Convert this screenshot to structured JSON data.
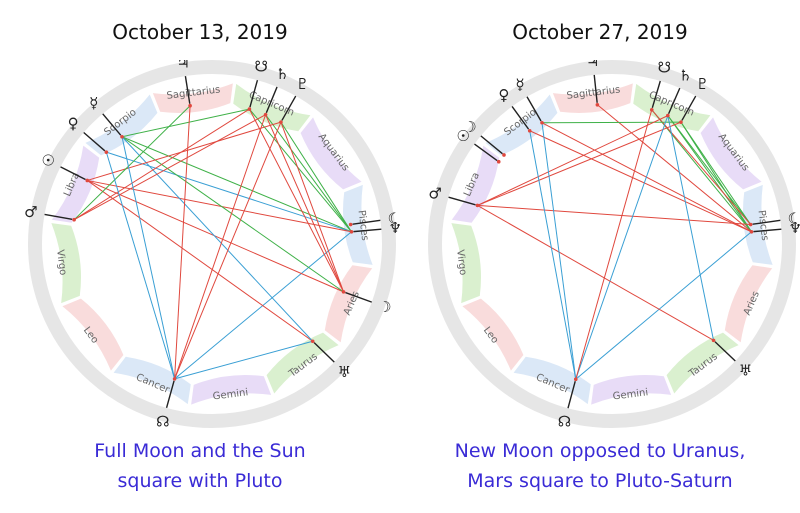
{
  "charts": [
    {
      "title": "October 13, 2019",
      "caption": [
        "Full Moon and the Sun",
        "square with Pluto"
      ],
      "bodies": [
        {
          "id": "pluto",
          "glyph": "♇",
          "lon": 291.5
        },
        {
          "id": "saturn",
          "glyph": "♄",
          "lon": 284.5
        },
        {
          "id": "node-s",
          "glyph": "☋",
          "lon": 277.5
        },
        {
          "id": "jupiter",
          "glyph": "♃",
          "lon": 253.0
        },
        {
          "id": "mercury",
          "glyph": "☿",
          "lon": 222.0
        },
        {
          "id": "venus",
          "glyph": "♀",
          "lon": 213.0
        },
        {
          "id": "sun",
          "glyph": "☉",
          "lon": 199.0
        },
        {
          "id": "mars",
          "glyph": "♂",
          "lon": 182.0
        },
        {
          "id": "node-n",
          "glyph": "☊",
          "lon": 97.5
        },
        {
          "id": "uranus",
          "glyph": "♅",
          "lon": 36.0
        },
        {
          "id": "moon",
          "glyph": "☽",
          "lon": 12.0
        },
        {
          "id": "neptune",
          "glyph": "♆",
          "lon": 347.0
        },
        {
          "id": "moon2",
          "glyph": "☾",
          "lon": 344.0
        }
      ],
      "aspects": [
        {
          "a": "neptune",
          "b": "pluto",
          "color": "green"
        },
        {
          "a": "neptune",
          "b": "saturn",
          "color": "green"
        },
        {
          "a": "neptune",
          "b": "node-s",
          "color": "green"
        },
        {
          "a": "neptune",
          "b": "mercury",
          "color": "green"
        },
        {
          "a": "neptune",
          "b": "venus",
          "color": "blue"
        },
        {
          "a": "neptune",
          "b": "sun",
          "color": "red"
        },
        {
          "a": "neptune",
          "b": "node-n",
          "color": "blue"
        },
        {
          "a": "moon",
          "b": "pluto",
          "color": "red"
        },
        {
          "a": "moon",
          "b": "saturn",
          "color": "red"
        },
        {
          "a": "moon",
          "b": "sun",
          "color": "red"
        },
        {
          "a": "moon",
          "b": "mercury",
          "color": "green"
        },
        {
          "a": "moon",
          "b": "node-s",
          "color": "red"
        },
        {
          "a": "uranus",
          "b": "sun",
          "color": "red"
        },
        {
          "a": "uranus",
          "b": "mercury",
          "color": "blue"
        },
        {
          "a": "uranus",
          "b": "node-n",
          "color": "blue"
        },
        {
          "a": "saturn",
          "b": "node-n",
          "color": "red"
        },
        {
          "a": "pluto",
          "b": "node-n",
          "color": "red"
        },
        {
          "a": "pluto",
          "b": "sun",
          "color": "red"
        },
        {
          "a": "saturn",
          "b": "mars",
          "color": "red"
        },
        {
          "a": "jupiter",
          "b": "mars",
          "color": "green"
        },
        {
          "a": "node-s",
          "b": "mercury",
          "color": "green"
        },
        {
          "a": "node-s",
          "b": "mars",
          "color": "red"
        },
        {
          "a": "mercury",
          "b": "node-n",
          "color": "blue"
        },
        {
          "a": "jupiter",
          "b": "node-n",
          "color": "red"
        },
        {
          "a": "venus",
          "b": "node-n",
          "color": "blue"
        }
      ]
    },
    {
      "title": "October 27, 2019",
      "caption": [
        "New Moon opposed to Uranus,",
        "Mars square to Pluto-Saturn"
      ],
      "bodies": [
        {
          "id": "pluto",
          "glyph": "♇",
          "lon": 291.5
        },
        {
          "id": "saturn",
          "glyph": "♄",
          "lon": 285.5
        },
        {
          "id": "node-s",
          "glyph": "☋",
          "lon": 278.5
        },
        {
          "id": "jupiter",
          "glyph": "♃",
          "lon": 256.0
        },
        {
          "id": "mercury",
          "glyph": "☿",
          "lon": 232.0
        },
        {
          "id": "venus",
          "glyph": "♀",
          "lon": 226.0
        },
        {
          "id": "moon",
          "glyph": "☽",
          "lon": 211.5
        },
        {
          "id": "sun",
          "glyph": "☉",
          "lon": 208.0
        },
        {
          "id": "mars",
          "glyph": "♂",
          "lon": 188.0
        },
        {
          "id": "node-n",
          "glyph": "☊",
          "lon": 97.0
        },
        {
          "id": "uranus",
          "glyph": "♅",
          "lon": 35.5
        },
        {
          "id": "neptune",
          "glyph": "♆",
          "lon": 347.0
        },
        {
          "id": "moon2",
          "glyph": "☾",
          "lon": 344.0
        }
      ],
      "aspects": [
        {
          "a": "neptune",
          "b": "pluto",
          "color": "green"
        },
        {
          "a": "neptune",
          "b": "saturn",
          "color": "green"
        },
        {
          "a": "neptune",
          "b": "node-s",
          "color": "green"
        },
        {
          "a": "neptune",
          "b": "jupiter",
          "color": "red"
        },
        {
          "a": "neptune",
          "b": "mercury",
          "color": "red"
        },
        {
          "a": "neptune",
          "b": "venus",
          "color": "red"
        },
        {
          "a": "neptune",
          "b": "node-n",
          "color": "blue"
        },
        {
          "a": "moon2",
          "b": "pluto",
          "color": "green"
        },
        {
          "a": "moon2",
          "b": "saturn",
          "color": "green"
        },
        {
          "a": "moon2",
          "b": "node-s",
          "color": "red"
        },
        {
          "a": "moon2",
          "b": "mars",
          "color": "red"
        },
        {
          "a": "pluto",
          "b": "mercury",
          "color": "green"
        },
        {
          "a": "pluto",
          "b": "mars",
          "color": "red"
        },
        {
          "a": "saturn",
          "b": "mars",
          "color": "red"
        },
        {
          "a": "saturn",
          "b": "node-n",
          "color": "blue"
        },
        {
          "a": "node-s",
          "b": "node-n",
          "color": "red"
        },
        {
          "a": "uranus",
          "b": "mars",
          "color": "red"
        },
        {
          "a": "uranus",
          "b": "saturn",
          "color": "blue"
        },
        {
          "a": "mercury",
          "b": "node-n",
          "color": "blue"
        },
        {
          "a": "venus",
          "b": "node-n",
          "color": "blue"
        }
      ]
    }
  ],
  "signs": [
    {
      "name": "Aries",
      "color": "#f9dcdc"
    },
    {
      "name": "Taurus",
      "color": "#daf0cf"
    },
    {
      "name": "Gemini",
      "color": "#e8dcf7"
    },
    {
      "name": "Cancer",
      "color": "#dbe8f7"
    },
    {
      "name": "Leo",
      "color": "#f9dcdc"
    },
    {
      "name": "Virgo",
      "color": "#daf0cf"
    },
    {
      "name": "Libra",
      "color": "#e8dcf7"
    },
    {
      "name": "Scorpio",
      "color": "#dbe8f7"
    },
    {
      "name": "Sagittarius",
      "color": "#f9dcdc"
    },
    {
      "name": "Capricorn",
      "color": "#daf0cf"
    },
    {
      "name": "Aquarius",
      "color": "#e8dcf7"
    },
    {
      "name": "Pisces",
      "color": "#dbe8f7"
    }
  ],
  "colors": {
    "red": "#e0483e",
    "green": "#3fb148",
    "blue": "#3a9fd4",
    "outer_ring": "#e6e6e6",
    "caption": "#3a2bd6"
  }
}
